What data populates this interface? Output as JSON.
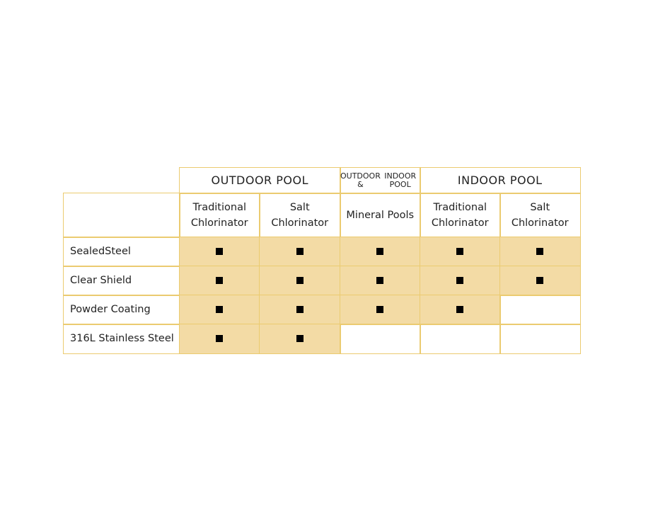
{
  "groups": [
    "OUTDOOR POOL",
    "OUTDOOR & INDOOR POOL",
    "INDOOR POOL"
  ],
  "group_lines": [
    [
      "OUTDOOR POOL"
    ],
    [
      "OUTDOOR &",
      "INDOOR POOL"
    ],
    [
      "INDOOR POOL"
    ]
  ],
  "columns": [
    [
      "Traditional",
      "Chlorinator"
    ],
    [
      "Salt",
      "Chlorinator"
    ],
    [
      "Mineral Pools"
    ],
    [
      "Traditional",
      "Chlorinator"
    ],
    [
      "Salt",
      "Chlorinator"
    ]
  ],
  "rows": [
    {
      "label": "SealedSteel",
      "values": [
        true,
        true,
        true,
        true,
        true
      ]
    },
    {
      "label": "Clear Shield",
      "values": [
        true,
        true,
        true,
        true,
        true
      ]
    },
    {
      "label": "Powder Coating",
      "values": [
        true,
        true,
        true,
        true,
        false
      ]
    },
    {
      "label": "316L Stainless Steel",
      "values": [
        true,
        true,
        false,
        false,
        false
      ]
    }
  ],
  "colors": {
    "fill": "#f3dba5",
    "border": "#ebcb70",
    "mark": "#000000"
  }
}
